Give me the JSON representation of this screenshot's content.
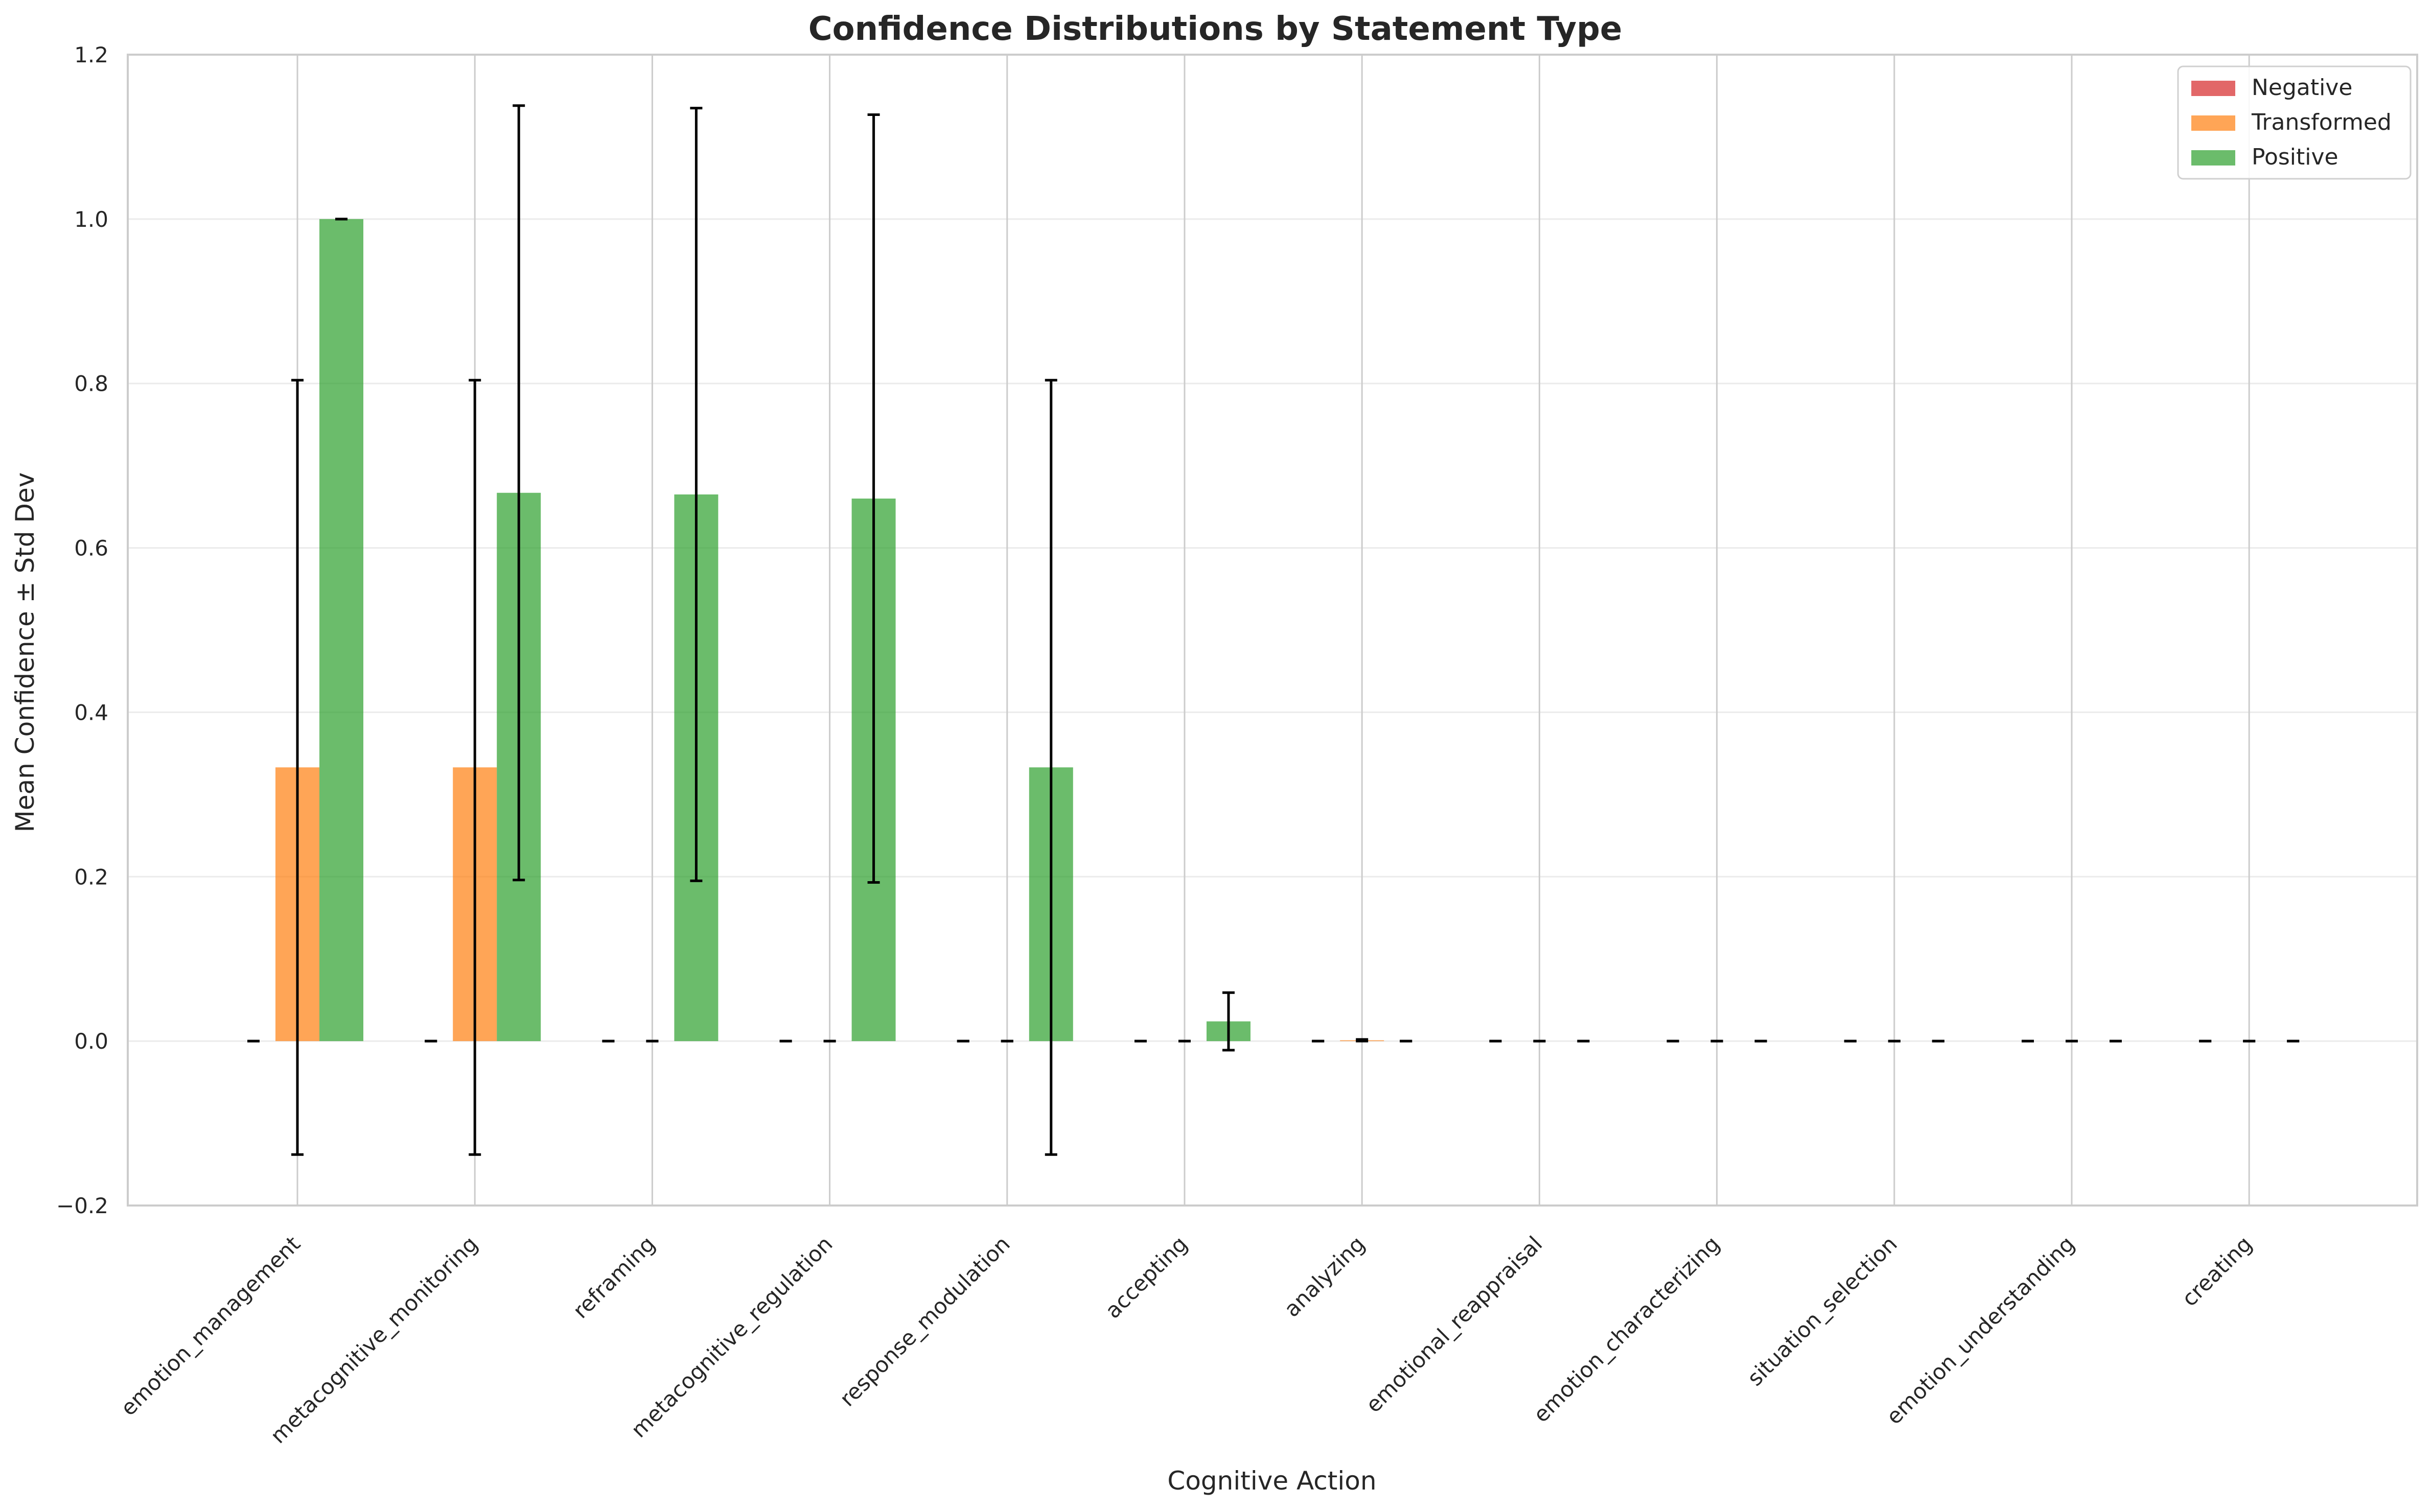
{
  "chart_data": {
    "type": "bar",
    "title": "Confidence Distributions by Statement Type",
    "xlabel": "Cognitive Action",
    "ylabel": "Mean Confidence ± Std Dev",
    "ylim": [
      -0.2,
      1.2
    ],
    "yticks": [
      -0.2,
      0.0,
      0.2,
      0.4,
      0.6,
      0.8,
      1.0,
      1.2
    ],
    "ytick_labels": [
      "−0.2",
      "0.0",
      "0.2",
      "0.4",
      "0.6",
      "0.8",
      "1.0",
      "1.2"
    ],
    "grid": true,
    "legend_position": "top-right",
    "categories": [
      "emotion_management",
      "metacognitive_monitoring",
      "reframing",
      "metacognitive_regulation",
      "response_modulation",
      "accepting",
      "analyzing",
      "emotional_reappraisal",
      "emotion_characterizing",
      "situation_selection",
      "emotion_understanding",
      "creating"
    ],
    "series": [
      {
        "name": "Negative",
        "color": "#d62728",
        "values": [
          0,
          0,
          0,
          0,
          0,
          0,
          0,
          0,
          0,
          0,
          0,
          0
        ],
        "errors": [
          0,
          0,
          0,
          0,
          0,
          0,
          0,
          0,
          0,
          0,
          0,
          0
        ]
      },
      {
        "name": "Transformed",
        "color": "#ff7f0e",
        "values": [
          0.333,
          0.333,
          0,
          0,
          0,
          0,
          0.001,
          0,
          0,
          0,
          0,
          0
        ],
        "errors": [
          0.471,
          0.471,
          0,
          0,
          0,
          0,
          0.001,
          0,
          0,
          0,
          0,
          0
        ]
      },
      {
        "name": "Positive",
        "color": "#2ca02c",
        "values": [
          1.0,
          0.667,
          0.665,
          0.66,
          0.333,
          0.024,
          0,
          0,
          0,
          0,
          0,
          0
        ],
        "errors": [
          0,
          0.471,
          0.47,
          0.467,
          0.471,
          0.035,
          0,
          0,
          0,
          0,
          0,
          0
        ]
      }
    ]
  }
}
